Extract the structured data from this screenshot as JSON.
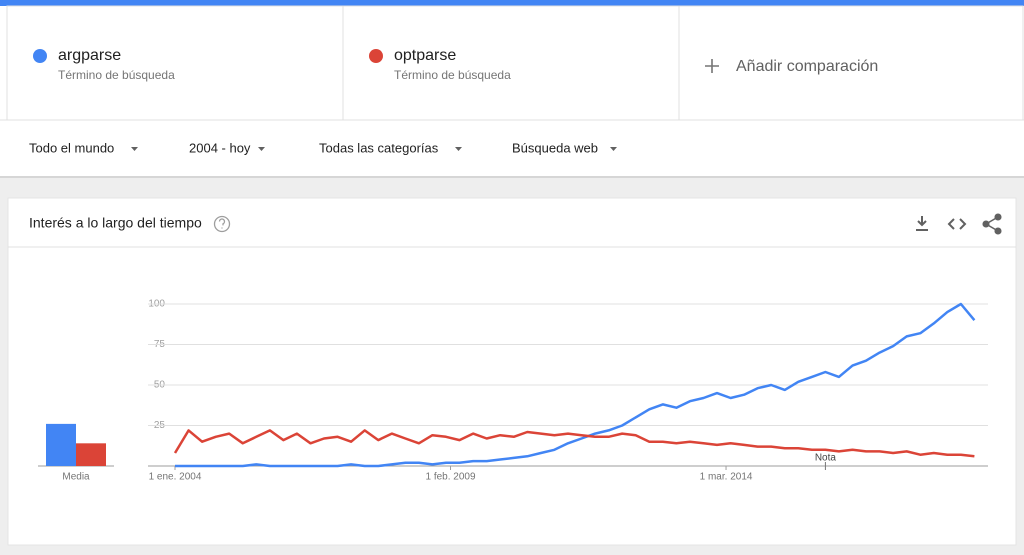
{
  "search_terms": [
    {
      "subtitle": "Término de búsqueda"
    },
    {
      "subtitle": "Término de búsqueda"
    }
  ],
  "add_comparison": "Añadir comparación",
  "filters": [
    "Todo el mundo",
    "2004 - hoy",
    "Todas las categorías",
    "Búsqueda web"
  ],
  "card": {
    "title": "Interés a lo largo del tiempo"
  },
  "chart_data": {
    "type": "line",
    "x": [
      "2004-01-01",
      "2004-04-01",
      "2004-07-01",
      "2004-10-01",
      "2005-01-01",
      "2005-04-01",
      "2005-07-01",
      "2005-10-01",
      "2006-01-01",
      "2006-04-01",
      "2006-07-01",
      "2006-10-01",
      "2007-01-01",
      "2007-04-01",
      "2007-07-01",
      "2007-10-01",
      "2008-01-01",
      "2008-04-01",
      "2008-07-01",
      "2008-10-01",
      "2009-01-01",
      "2009-04-01",
      "2009-07-01",
      "2009-10-01",
      "2010-01-01",
      "2010-04-01",
      "2010-07-01",
      "2010-10-01",
      "2011-01-01",
      "2011-04-01",
      "2011-07-01",
      "2011-10-01",
      "2012-01-01",
      "2012-04-01",
      "2012-07-01",
      "2012-10-01",
      "2013-01-01",
      "2013-04-01",
      "2013-07-01",
      "2013-10-01",
      "2014-01-01",
      "2014-04-01",
      "2014-07-01",
      "2014-10-01",
      "2015-01-01",
      "2015-04-01",
      "2015-07-01",
      "2015-10-01",
      "2016-01-01",
      "2016-04-01",
      "2016-07-01",
      "2016-10-01",
      "2017-01-01",
      "2017-04-01",
      "2017-07-01",
      "2017-10-01",
      "2018-01-01",
      "2018-04-01",
      "2018-07-01",
      "2018-10-01"
    ],
    "series": [
      {
        "name": "argparse",
        "color": "#4285f4",
        "average": 26,
        "values": [
          0,
          0,
          0,
          0,
          0,
          0,
          1,
          0,
          0,
          0,
          0,
          0,
          0,
          1,
          0,
          0,
          1,
          2,
          2,
          1,
          2,
          2,
          3,
          3,
          4,
          5,
          6,
          8,
          10,
          14,
          17,
          20,
          22,
          25,
          30,
          35,
          38,
          36,
          40,
          42,
          45,
          42,
          44,
          48,
          50,
          47,
          52,
          55,
          58,
          55,
          62,
          65,
          70,
          74,
          80,
          82,
          88,
          95,
          100,
          90
        ]
      },
      {
        "name": "optparse",
        "color": "#db4437",
        "average": 14,
        "values": [
          8,
          22,
          15,
          18,
          20,
          14,
          18,
          22,
          16,
          20,
          14,
          17,
          18,
          15,
          22,
          16,
          20,
          17,
          14,
          19,
          18,
          16,
          20,
          17,
          19,
          18,
          21,
          20,
          19,
          20,
          19,
          18,
          18,
          20,
          19,
          15,
          15,
          14,
          15,
          14,
          13,
          14,
          13,
          12,
          12,
          11,
          11,
          10,
          10,
          9,
          10,
          9,
          9,
          8,
          9,
          7,
          8,
          7,
          7,
          6
        ]
      }
    ],
    "average_label": "Media",
    "xlim": [
      "2004-01-01",
      "2019-01-01"
    ],
    "xticks": [
      {
        "value": "2004-01-01",
        "label": "1 ene. 2004"
      },
      {
        "value": "2009-02-01",
        "label": "1 feb. 2009"
      },
      {
        "value": "2014-03-01",
        "label": "1 mar. 2014"
      }
    ],
    "ylim": [
      0,
      100
    ],
    "yticks": [
      25,
      50,
      75,
      100
    ],
    "grid": true,
    "annotations": [
      {
        "text": "Nota",
        "x": "2016-01-01"
      }
    ]
  }
}
